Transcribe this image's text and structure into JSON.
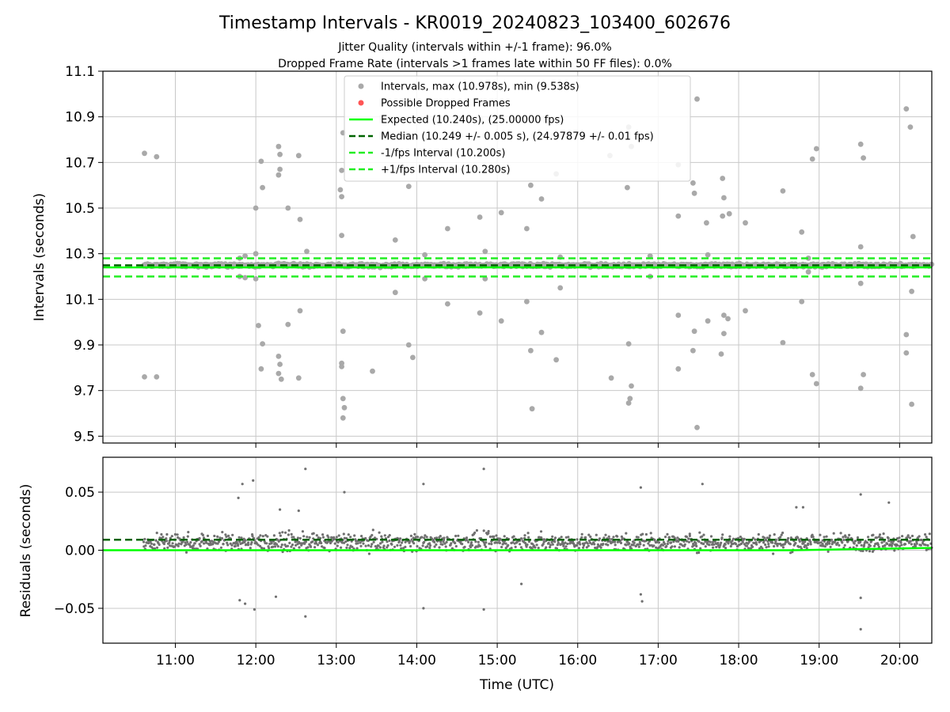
{
  "title": "Timestamp Intervals - KR0019_20240823_103400_602676",
  "subtitle_1": "Jitter Quality (intervals within +/-1 frame): 96.0%",
  "subtitle_2": "Dropped Frame Rate (intervals >1 frames late within 50 FF files): 0.0%",
  "colors": {
    "points": "#a9a9a9",
    "residual_points": "#707070",
    "dropped": "#ff5555",
    "expected": "#00ff00",
    "median": "#006400",
    "interval_band": "#22ee22",
    "grid": "#c8c8c8"
  },
  "chart_data": [
    {
      "type": "scatter",
      "panel": "top",
      "ylabel": "Intervals (seconds)",
      "ylim": [
        9.47,
        11.1
      ],
      "yticks": [
        {
          "value": 9.5,
          "label": "9.5"
        },
        {
          "value": 9.7,
          "label": "9.7"
        },
        {
          "value": 9.9,
          "label": "9.9"
        },
        {
          "value": 10.1,
          "label": "10.1"
        },
        {
          "value": 10.3,
          "label": "10.3"
        },
        {
          "value": 10.5,
          "label": "10.5"
        },
        {
          "value": 10.7,
          "label": "10.7"
        },
        {
          "value": 10.9,
          "label": "10.9"
        },
        {
          "value": 11.1,
          "label": "11.1"
        }
      ],
      "xlim": [
        "10:06",
        "20:24"
      ],
      "grid": true,
      "legend_position": "top-center",
      "legend": [
        {
          "label": "Intervals, max (10.978s), min (9.538s)",
          "kind": "marker",
          "color": "#a9a9a9"
        },
        {
          "label": "Possible Dropped Frames",
          "kind": "marker",
          "color": "#ff5555"
        },
        {
          "label": "Expected (10.240s), (25.00000 fps)",
          "kind": "solid",
          "color": "#00ff00"
        },
        {
          "label": "Median (10.249 +/- 0.005 s), (24.97879 +/- 0.01 fps)",
          "kind": "dashed",
          "color": "#006400"
        },
        {
          "label": "-1/fps Interval (10.200s)",
          "kind": "dashed",
          "color": "#22ee22"
        },
        {
          "label": "+1/fps Interval (10.280s)",
          "kind": "dashed",
          "color": "#22ee22"
        }
      ],
      "reference_lines": {
        "expected": 10.24,
        "median": 10.249,
        "lower": 10.2,
        "upper": 10.28
      },
      "dense_band": {
        "x_range": [
          "10:36",
          "20:24"
        ],
        "center": 10.249,
        "spread": 0.014
      },
      "outliers": [
        [
          "10:37",
          10.74
        ],
        [
          "10:46",
          10.725
        ],
        [
          "10:37",
          9.76
        ],
        [
          "10:46",
          9.76
        ],
        [
          "11:48",
          10.28
        ],
        [
          "11:52",
          10.29
        ],
        [
          "11:48",
          10.2
        ],
        [
          "11:52",
          10.195
        ],
        [
          "12:00",
          10.5
        ],
        [
          "12:00",
          10.3
        ],
        [
          "12:00",
          10.19
        ],
        [
          "12:02",
          9.985
        ],
        [
          "12:04",
          10.705
        ],
        [
          "12:05",
          10.59
        ],
        [
          "12:05",
          9.905
        ],
        [
          "12:04",
          9.795
        ],
        [
          "12:17",
          10.77
        ],
        [
          "12:18",
          10.735
        ],
        [
          "12:18",
          10.67
        ],
        [
          "12:17",
          10.645
        ],
        [
          "12:24",
          10.5
        ],
        [
          "12:32",
          10.73
        ],
        [
          "12:33",
          10.45
        ],
        [
          "12:24",
          9.99
        ],
        [
          "12:17",
          9.85
        ],
        [
          "12:18",
          9.815
        ],
        [
          "12:17",
          9.775
        ],
        [
          "12:19",
          9.75
        ],
        [
          "12:32",
          9.755
        ],
        [
          "12:33",
          10.05
        ],
        [
          "12:38",
          10.31
        ],
        [
          "13:03",
          10.58
        ],
        [
          "13:04",
          10.55
        ],
        [
          "13:04",
          10.38
        ],
        [
          "13:05",
          10.83
        ],
        [
          "13:04",
          10.665
        ],
        [
          "13:05",
          9.96
        ],
        [
          "13:04",
          9.82
        ],
        [
          "13:04",
          9.805
        ],
        [
          "13:05",
          9.665
        ],
        [
          "13:06",
          9.625
        ],
        [
          "13:05",
          9.58
        ],
        [
          "13:27",
          9.785
        ],
        [
          "13:44",
          10.36
        ],
        [
          "13:44",
          10.13
        ],
        [
          "13:54",
          10.595
        ],
        [
          "13:54",
          9.9
        ],
        [
          "13:57",
          9.845
        ],
        [
          "14:06",
          10.295
        ],
        [
          "14:06",
          10.19
        ],
        [
          "14:23",
          10.41
        ],
        [
          "14:23",
          10.08
        ],
        [
          "14:47",
          10.46
        ],
        [
          "14:47",
          10.04
        ],
        [
          "14:51",
          10.31
        ],
        [
          "14:51",
          10.19
        ],
        [
          "15:03",
          10.48
        ],
        [
          "15:03",
          10.005
        ],
        [
          "15:22",
          10.41
        ],
        [
          "15:22",
          10.09
        ],
        [
          "15:25",
          10.6
        ],
        [
          "15:25",
          9.875
        ],
        [
          "15:26",
          9.62
        ],
        [
          "15:33",
          10.54
        ],
        [
          "15:33",
          9.955
        ],
        [
          "15:44",
          10.65
        ],
        [
          "15:44",
          9.835
        ],
        [
          "15:47",
          10.285
        ],
        [
          "15:47",
          10.15
        ],
        [
          "16:24",
          10.73
        ],
        [
          "16:25",
          9.755
        ],
        [
          "16:37",
          10.59
        ],
        [
          "16:38",
          9.905
        ],
        [
          "16:38",
          10.855
        ],
        [
          "16:40",
          10.77
        ],
        [
          "16:38",
          9.645
        ],
        [
          "16:39",
          9.665
        ],
        [
          "16:40",
          9.72
        ],
        [
          "16:54",
          10.29
        ],
        [
          "16:54",
          10.2
        ],
        [
          "17:15",
          10.69
        ],
        [
          "17:15",
          10.465
        ],
        [
          "17:15",
          10.03
        ],
        [
          "17:15",
          9.795
        ],
        [
          "17:26",
          10.61
        ],
        [
          "17:27",
          10.565
        ],
        [
          "17:27",
          9.96
        ],
        [
          "17:26",
          9.875
        ],
        [
          "17:29",
          10.978
        ],
        [
          "17:29",
          9.538
        ],
        [
          "17:36",
          10.435
        ],
        [
          "17:37",
          10.295
        ],
        [
          "17:37",
          10.005
        ],
        [
          "17:48",
          10.63
        ],
        [
          "17:49",
          10.545
        ],
        [
          "17:48",
          10.465
        ],
        [
          "17:53",
          10.475
        ],
        [
          "17:49",
          10.03
        ],
        [
          "17:49",
          9.95
        ],
        [
          "17:52",
          10.015
        ],
        [
          "17:47",
          9.86
        ],
        [
          "18:05",
          10.435
        ],
        [
          "18:05",
          10.05
        ],
        [
          "18:33",
          10.575
        ],
        [
          "18:33",
          9.91
        ],
        [
          "18:47",
          10.395
        ],
        [
          "18:47",
          10.09
        ],
        [
          "18:52",
          10.28
        ],
        [
          "18:52",
          10.22
        ],
        [
          "18:55",
          10.715
        ],
        [
          "18:58",
          10.76
        ],
        [
          "18:55",
          9.77
        ],
        [
          "18:58",
          9.73
        ],
        [
          "19:31",
          10.78
        ],
        [
          "19:33",
          10.72
        ],
        [
          "19:31",
          9.71
        ],
        [
          "19:33",
          9.77
        ],
        [
          "19:31",
          10.33
        ],
        [
          "19:31",
          10.17
        ],
        [
          "20:05",
          10.935
        ],
        [
          "20:08",
          10.855
        ],
        [
          "20:10",
          10.375
        ],
        [
          "20:05",
          9.945
        ],
        [
          "20:05",
          9.865
        ],
        [
          "20:09",
          10.135
        ],
        [
          "20:09",
          9.64
        ]
      ]
    },
    {
      "type": "scatter",
      "panel": "bottom",
      "ylabel": "Residuals (seconds)",
      "xlabel": "Time (UTC)",
      "ylim": [
        -0.08,
        0.08
      ],
      "yticks": [
        {
          "value": -0.05,
          "label": "−0.05"
        },
        {
          "value": 0.0,
          "label": "0.00"
        },
        {
          "value": 0.05,
          "label": "0.05"
        }
      ],
      "xlim": [
        "10:06",
        "20:24"
      ],
      "xticks": [
        "11:00",
        "12:00",
        "13:00",
        "14:00",
        "15:00",
        "16:00",
        "17:00",
        "18:00",
        "19:00",
        "20:00"
      ],
      "grid": true,
      "reference_lines": {
        "expected": 0.0,
        "median": 0.009
      },
      "dense_band": {
        "x_range": [
          "10:36",
          "20:24"
        ],
        "center": 0.007,
        "spread": 0.016
      },
      "outliers": [
        [
          "11:47",
          0.045
        ],
        [
          "11:50",
          0.057
        ],
        [
          "11:58",
          0.06
        ],
        [
          "11:48",
          -0.043
        ],
        [
          "11:52",
          -0.046
        ],
        [
          "11:59",
          -0.051
        ],
        [
          "12:15",
          -0.04
        ],
        [
          "12:18",
          0.035
        ],
        [
          "12:32",
          0.034
        ],
        [
          "12:37",
          0.07
        ],
        [
          "12:37",
          -0.057
        ],
        [
          "13:06",
          0.05
        ],
        [
          "14:05",
          0.057
        ],
        [
          "14:05",
          -0.05
        ],
        [
          "14:50",
          0.07
        ],
        [
          "14:50",
          -0.051
        ],
        [
          "15:18",
          -0.029
        ],
        [
          "16:47",
          0.054
        ],
        [
          "16:47",
          -0.038
        ],
        [
          "16:48",
          -0.044
        ],
        [
          "17:33",
          0.057
        ],
        [
          "18:43",
          0.037
        ],
        [
          "18:48",
          0.037
        ],
        [
          "19:31",
          0.048
        ],
        [
          "19:31",
          -0.041
        ],
        [
          "19:31",
          -0.068
        ],
        [
          "19:52",
          0.041
        ]
      ]
    }
  ]
}
